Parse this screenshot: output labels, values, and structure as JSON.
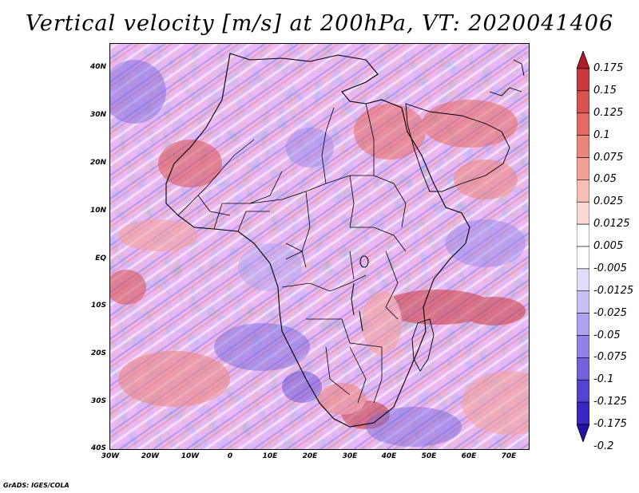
{
  "title": "Vertical velocity [m/s] at 200hPa, VT: 2020041406",
  "y_axis_labels": [
    "40N",
    "30N",
    "20N",
    "10N",
    "EQ",
    "10S",
    "20S",
    "30S",
    "40S"
  ],
  "x_axis_labels": [
    "30W",
    "20W",
    "10W",
    "0",
    "10E",
    "20E",
    "30E",
    "40E",
    "50E",
    "60E",
    "70E"
  ],
  "colorbar": {
    "labels": [
      "0.175",
      "0.15",
      "0.125",
      "0.1",
      "0.075",
      "0.05",
      "0.025",
      "0.0125",
      "0.005",
      "-0.005",
      "-0.0125",
      "-0.025",
      "-0.05",
      "-0.075",
      "-0.1",
      "-0.125",
      "-0.175",
      "-0.2"
    ],
    "colors": [
      "#b8242f",
      "#c93a3d",
      "#d9524e",
      "#e56a63",
      "#ee857b",
      "#f4a097",
      "#f8bdb5",
      "#fbd8d2",
      "#ffffff",
      "#ffffff",
      "#e2dcfb",
      "#c9c0f6",
      "#ada2f0",
      "#9082e8",
      "#7262de",
      "#5544d2",
      "#3a28c4",
      "#2817b6"
    ],
    "top_arrow_color": "#b01c2a",
    "bottom_arrow_color": "#2412a8"
  },
  "credit": "GrADS: IGES/COLA"
}
